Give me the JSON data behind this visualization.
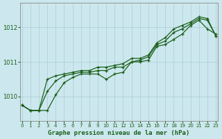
{
  "title": "Graphe pression niveau de la mer (hPa)",
  "background_color": "#cce8ee",
  "grid_color": "#aaccd4",
  "line_color": "#1a5e1a",
  "text_color": "#1a5e1a",
  "x_min": 0,
  "x_max": 23,
  "y_min": 1009.3,
  "y_max": 1012.7,
  "yticks": [
    1010,
    1011,
    1012
  ],
  "xticks": [
    0,
    1,
    2,
    3,
    4,
    5,
    6,
    7,
    8,
    9,
    10,
    11,
    12,
    13,
    14,
    15,
    16,
    17,
    18,
    19,
    20,
    21,
    22,
    23
  ],
  "series1": [
    1009.75,
    1009.6,
    1009.6,
    1009.6,
    1010.05,
    1010.4,
    1010.55,
    1010.65,
    1010.65,
    1010.65,
    1010.5,
    1010.65,
    1010.7,
    1011.0,
    1011.0,
    1011.05,
    1011.45,
    1011.5,
    1011.65,
    1011.8,
    1012.05,
    1012.2,
    1011.95,
    1011.8
  ],
  "series2": [
    1009.75,
    1009.6,
    1009.6,
    1010.15,
    1010.45,
    1010.6,
    1010.65,
    1010.7,
    1010.7,
    1010.75,
    1010.75,
    1010.85,
    1010.85,
    1011.0,
    1011.05,
    1011.15,
    1011.5,
    1011.6,
    1011.85,
    1011.95,
    1012.1,
    1012.25,
    1012.2,
    1011.75
  ],
  "series3": [
    1009.75,
    1009.6,
    1009.6,
    1010.5,
    1010.6,
    1010.65,
    1010.7,
    1010.75,
    1010.75,
    1010.85,
    1010.85,
    1010.9,
    1010.95,
    1011.1,
    1011.1,
    1011.2,
    1011.55,
    1011.7,
    1011.95,
    1012.05,
    1012.15,
    1012.3,
    1012.25,
    1011.75
  ]
}
